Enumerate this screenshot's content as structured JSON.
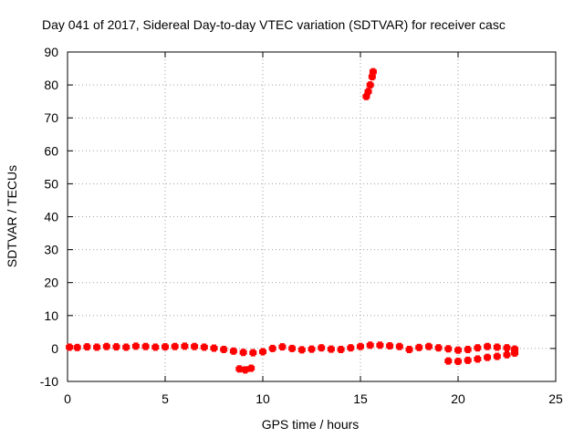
{
  "chart_data": {
    "type": "scatter",
    "title": "Day 041 of 2017, Sidereal Day-to-day VTEC variation (SDTVAR) for receiver casc",
    "xlabel": "GPS time / hours",
    "ylabel": "SDTVAR / TECUs",
    "xlim": [
      0,
      25
    ],
    "ylim": [
      -10,
      90
    ],
    "xticks": [
      "0",
      "5",
      "10",
      "15",
      "20",
      "25"
    ],
    "yticks": [
      "-10",
      "0",
      "10",
      "20",
      "30",
      "40",
      "50",
      "60",
      "70",
      "80",
      "90"
    ],
    "grid": true,
    "marker_color": "#ff0000",
    "series": [
      {
        "points": [
          [
            0.1,
            0.4
          ],
          [
            0.5,
            0.3
          ],
          [
            1.0,
            0.5
          ],
          [
            1.5,
            0.4
          ],
          [
            2.0,
            0.6
          ],
          [
            2.5,
            0.5
          ],
          [
            3.0,
            0.4
          ],
          [
            3.5,
            0.7
          ],
          [
            4.0,
            0.6
          ],
          [
            4.5,
            0.4
          ],
          [
            5.0,
            0.5
          ],
          [
            5.5,
            0.6
          ],
          [
            6.0,
            0.7
          ],
          [
            6.5,
            0.6
          ],
          [
            7.0,
            0.4
          ],
          [
            7.5,
            0.1
          ],
          [
            8.0,
            -0.3
          ],
          [
            8.5,
            -0.8
          ],
          [
            9.0,
            -1.2
          ],
          [
            9.5,
            -1.3
          ],
          [
            10.0,
            -1.0
          ],
          [
            10.5,
            0.0
          ],
          [
            11.0,
            0.5
          ],
          [
            11.5,
            0.0
          ],
          [
            12.0,
            -0.4
          ],
          [
            12.5,
            -0.2
          ],
          [
            13.0,
            0.2
          ],
          [
            13.5,
            -0.2
          ],
          [
            14.0,
            -0.3
          ],
          [
            14.5,
            0.2
          ],
          [
            15.0,
            0.6
          ],
          [
            15.5,
            1.0
          ],
          [
            16.0,
            1.0
          ],
          [
            16.5,
            0.8
          ],
          [
            17.0,
            0.6
          ],
          [
            17.5,
            -0.3
          ],
          [
            18.0,
            0.3
          ],
          [
            18.5,
            0.6
          ],
          [
            19.0,
            0.2
          ],
          [
            19.5,
            -0.1
          ],
          [
            20.0,
            -0.5
          ],
          [
            20.5,
            -0.3
          ],
          [
            21.0,
            0.2
          ],
          [
            21.5,
            0.6
          ],
          [
            22.0,
            0.4
          ],
          [
            22.5,
            0.2
          ],
          [
            22.9,
            -0.2
          ],
          [
            19.5,
            -3.8
          ],
          [
            20.0,
            -3.9
          ],
          [
            20.5,
            -3.6
          ],
          [
            21.0,
            -3.2
          ],
          [
            21.5,
            -2.7
          ],
          [
            22.0,
            -2.4
          ],
          [
            22.5,
            -1.9
          ],
          [
            22.9,
            -1.4
          ],
          [
            8.8,
            -6.2
          ],
          [
            9.1,
            -6.5
          ],
          [
            9.4,
            -6.0
          ],
          [
            15.3,
            76.5
          ],
          [
            15.4,
            78.0
          ],
          [
            15.5,
            80.0
          ],
          [
            15.6,
            82.5
          ],
          [
            15.65,
            84.0
          ]
        ]
      }
    ]
  }
}
